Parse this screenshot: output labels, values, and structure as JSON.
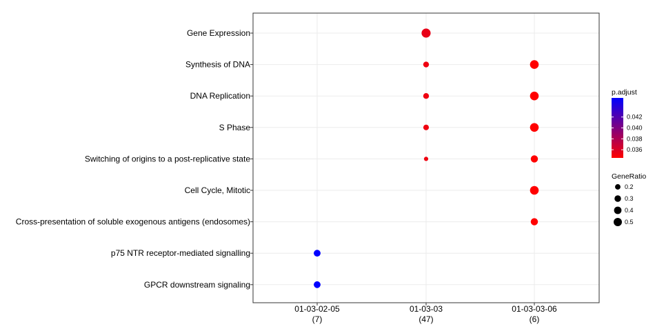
{
  "chart_data": {
    "type": "scatter",
    "title": "",
    "xlabel": "",
    "ylabel": "",
    "x_categories": [
      {
        "id": "01-03-02-05",
        "count": "(7)"
      },
      {
        "id": "01-03-03",
        "count": "(47)"
      },
      {
        "id": "01-03-03-06",
        "count": "(6)"
      }
    ],
    "y_categories": [
      "Gene Expression",
      "Synthesis of DNA",
      "DNA Replication",
      "S Phase",
      "Switching of origins to a post-replicative state",
      "Cell Cycle, Mitotic",
      "Cross-presentation of soluble exogenous antigens (endosomes)",
      "p75 NTR receptor-mediated signalling",
      "GPCR downstream signaling"
    ],
    "points": [
      {
        "x": "01-03-03",
        "y": "Gene Expression",
        "gene_ratio": 0.55,
        "p_adjust": 0.0355
      },
      {
        "x": "01-03-03",
        "y": "Synthesis of DNA",
        "gene_ratio": 0.2,
        "p_adjust": 0.0352
      },
      {
        "x": "01-03-03",
        "y": "DNA Replication",
        "gene_ratio": 0.2,
        "p_adjust": 0.0352
      },
      {
        "x": "01-03-03",
        "y": "S Phase",
        "gene_ratio": 0.19,
        "p_adjust": 0.0352
      },
      {
        "x": "01-03-03",
        "y": "Switching of origins to a post-replicative state",
        "gene_ratio": 0.1,
        "p_adjust": 0.0352
      },
      {
        "x": "01-03-03-06",
        "y": "Synthesis of DNA",
        "gene_ratio": 0.5,
        "p_adjust": 0.0345
      },
      {
        "x": "01-03-03-06",
        "y": "DNA Replication",
        "gene_ratio": 0.5,
        "p_adjust": 0.0345
      },
      {
        "x": "01-03-03-06",
        "y": "S Phase",
        "gene_ratio": 0.5,
        "p_adjust": 0.0345
      },
      {
        "x": "01-03-03-06",
        "y": "Switching of origins to a post-replicative state",
        "gene_ratio": 0.33,
        "p_adjust": 0.0345
      },
      {
        "x": "01-03-03-06",
        "y": "Cell Cycle, Mitotic",
        "gene_ratio": 0.5,
        "p_adjust": 0.0345
      },
      {
        "x": "01-03-03-06",
        "y": "Cross-presentation of soluble exogenous antigens (endosomes)",
        "gene_ratio": 0.33,
        "p_adjust": 0.0345
      },
      {
        "x": "01-03-02-05",
        "y": "p75 NTR receptor-mediated signalling",
        "gene_ratio": 0.29,
        "p_adjust": 0.0455
      },
      {
        "x": "01-03-02-05",
        "y": "GPCR downstream signaling",
        "gene_ratio": 0.29,
        "p_adjust": 0.0455
      }
    ],
    "color_legend": {
      "title": "p.adjust",
      "ticks": [
        0.042,
        0.04,
        0.038,
        0.036
      ],
      "tick_labels": [
        "0.042",
        "0.040",
        "0.038",
        "0.036"
      ],
      "range": [
        0.0345,
        0.0455
      ],
      "low_color": "#ff0000",
      "high_color": "#0000ff"
    },
    "size_legend": {
      "title": "GeneRatio",
      "values": [
        0.2,
        0.3,
        0.4,
        0.5
      ],
      "labels": [
        "0.2",
        "0.3",
        "0.4",
        "0.5"
      ]
    },
    "grid": true,
    "legend_position": "right"
  }
}
